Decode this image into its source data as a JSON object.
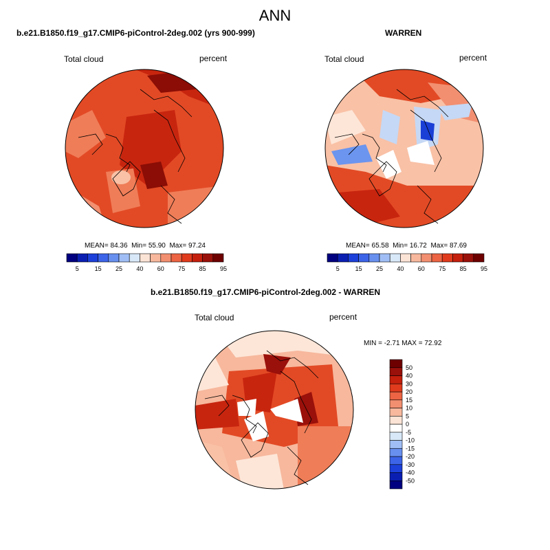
{
  "figure": {
    "title": "ANN"
  },
  "panels": [
    {
      "title": "b.e21.B1850.f19_g17.CMIP6-piControl-2deg.002 (yrs 900-999)",
      "variable": "Total cloud",
      "units": "percent",
      "stats": {
        "mean_label": "MEAN=",
        "mean": "84.36",
        "min_label": "Min=",
        "min": "55.90",
        "max_label": "Max=",
        "max": "97.24"
      }
    },
    {
      "title": "WARREN",
      "variable": "Total cloud",
      "units": "percent",
      "stats": {
        "mean_label": "MEAN=",
        "mean": "65.58",
        "min_label": "Min=",
        "min": "16.72",
        "max_label": "Max=",
        "max": "87.69"
      }
    },
    {
      "title": "b.e21.B1850.f19_g17.CMIP6-piControl-2deg.002 - WARREN",
      "variable": "Total cloud",
      "units": "percent",
      "stats_text": "MIN = -2.71 MAX = 72.92"
    }
  ],
  "colorbar_abs": {
    "colors": [
      "#000080",
      "#0a1fb2",
      "#1c40d9",
      "#3c64e8",
      "#6890ef",
      "#a0bef5",
      "#d8e8f8",
      "#fbe3d5",
      "#f7b89d",
      "#f28f70",
      "#ec6443",
      "#e03b1d",
      "#c4200d",
      "#9a100a",
      "#6e0000"
    ],
    "ticks": [
      "5",
      "15",
      "25",
      "40",
      "60",
      "75",
      "85",
      "95"
    ]
  },
  "colorbar_diff": {
    "colors": [
      "#000080",
      "#0a1fb2",
      "#1c40d9",
      "#3c64e8",
      "#6890ef",
      "#a0bef5",
      "#d8e8f8",
      "#ffffff",
      "#fbe3d5",
      "#f7b89d",
      "#f28f70",
      "#ec6443",
      "#e03b1d",
      "#c4200d",
      "#9a100a",
      "#6e0000"
    ],
    "ticks": [
      "-50",
      "-40",
      "-30",
      "-20",
      "-15",
      "-10",
      "-5",
      "0",
      "5",
      "10",
      "15",
      "20",
      "30",
      "40",
      "50"
    ]
  },
  "map_colors": {
    "dark": "#8b0d05",
    "red": "#c8250f",
    "orange": "#e24a25",
    "light": "#ef7d58",
    "pale": "#f9c1a6",
    "cream": "#fde6d8",
    "blue_light": "#c5d8f5",
    "blue": "#6b95ef",
    "blue_dark": "#1a3fd6",
    "land_line": "#000000"
  }
}
